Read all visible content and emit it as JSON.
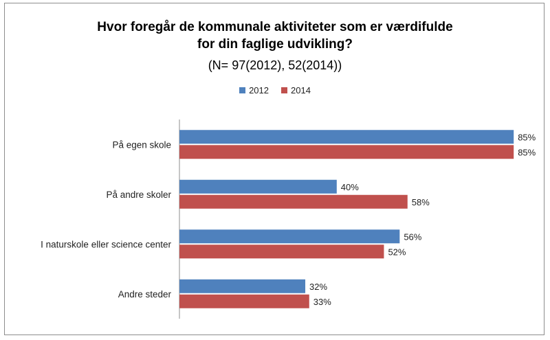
{
  "chart_data": {
    "type": "bar",
    "orientation": "horizontal",
    "title_line1": "Hvor foregår de kommunale aktiviteter som er værdifulde",
    "title_line2": "for din faglige udvikling?",
    "subtitle": "(N= 97(2012), 52(2014))",
    "categories": [
      "På egen skole",
      "På andre skoler",
      "I naturskole eller science center",
      "Andre steder"
    ],
    "series": [
      {
        "name": "2012",
        "color": "#4f81bd",
        "values": [
          85,
          40,
          56,
          32
        ],
        "labels": [
          "85%",
          "40%",
          "56%",
          "32%"
        ]
      },
      {
        "name": "2014",
        "color": "#c0504d",
        "values": [
          85,
          58,
          52,
          33
        ],
        "labels": [
          "85%",
          "58%",
          "52%",
          "33%"
        ]
      }
    ],
    "xlim": [
      0,
      100
    ],
    "legend_position": "top",
    "grid": false
  }
}
